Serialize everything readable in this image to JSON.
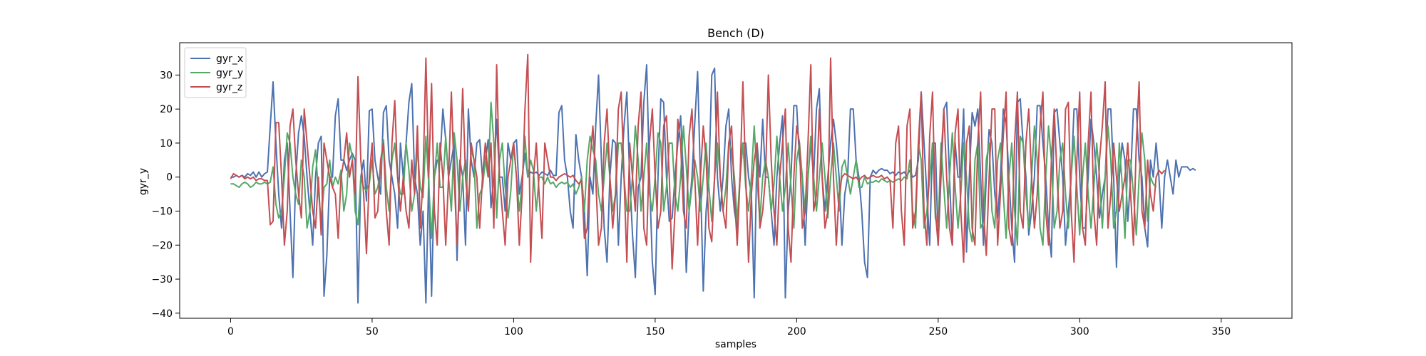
{
  "chart_data": {
    "type": "line",
    "title": "Bench (D)",
    "xlabel": "samples",
    "ylabel": "gyr_y",
    "xlim": [
      -18,
      375
    ],
    "ylim": [
      -41.5,
      39.5
    ],
    "xticks": [
      0,
      50,
      100,
      150,
      200,
      250,
      300,
      350
    ],
    "yticks": [
      -40,
      -30,
      -20,
      -10,
      0,
      10,
      20,
      30
    ],
    "grid": false,
    "legend_position": "top-left",
    "series": [
      {
        "name": "gyr_x",
        "color": "#4c72b0",
        "values": [
          0,
          0,
          0.5,
          0,
          0.5,
          0,
          1,
          0.5,
          1.5,
          0,
          1.5,
          0,
          1,
          1.5,
          15,
          28,
          10,
          -5,
          -15,
          5,
          10,
          -10,
          -29.5,
          0,
          13,
          18,
          12,
          0,
          -10,
          -20,
          0,
          10,
          12,
          -35,
          -23,
          0,
          0,
          18,
          23,
          5,
          5,
          2,
          5,
          7,
          5,
          -37,
          0,
          5,
          -7,
          19.5,
          20,
          5,
          0,
          -5,
          19,
          21,
          5,
          0,
          -5,
          -15,
          10,
          0,
          10,
          22,
          27.5,
          0,
          -5,
          -20,
          -10,
          -37,
          0,
          -35,
          0,
          5,
          5,
          20,
          11,
          0,
          5,
          10,
          -24.5,
          5,
          0,
          -20,
          20,
          5,
          0,
          10,
          11,
          0,
          5,
          11,
          -9,
          0,
          17,
          0,
          0,
          -10,
          10,
          5,
          10,
          11,
          -5,
          0,
          7,
          0,
          1.5,
          1,
          1.5,
          0.5,
          1.5,
          1,
          0.5,
          2,
          0.5,
          0.5,
          19,
          21,
          5,
          0,
          -10,
          -15,
          12.5,
          5,
          0,
          -10,
          -29,
          0,
          -5,
          15,
          30,
          5,
          -15,
          -25,
          0,
          11,
          10,
          -20,
          0,
          15,
          25,
          0,
          -17,
          -29.5,
          -3,
          0,
          22,
          33,
          0,
          -25,
          -34.5,
          0,
          23,
          22,
          0,
          -13,
          -12,
          0,
          10,
          18,
          0,
          -28,
          -10,
          0,
          16,
          31,
          0,
          -33.5,
          -10,
          0,
          30,
          32,
          0,
          -10,
          0,
          15,
          20,
          0,
          -10,
          -15,
          0,
          10,
          10,
          0,
          -5,
          -35.5,
          10,
          0,
          17,
          0,
          0,
          -10,
          -20,
          0,
          10,
          18,
          -35.5,
          -10,
          0,
          21,
          21,
          5,
          0,
          -20,
          0,
          10,
          0,
          20,
          26,
          0,
          -10,
          0,
          10,
          17,
          10,
          0,
          -20,
          -5,
          0,
          20,
          20,
          5,
          0,
          -10,
          -25,
          -29.5,
          0,
          2,
          1,
          2,
          2.5,
          2,
          2,
          1,
          1.5,
          0.5,
          1.5,
          1,
          1.5,
          0.5,
          2,
          0,
          0.5,
          5,
          25,
          10,
          -5,
          -20,
          10,
          10,
          -20,
          0,
          20,
          22,
          0,
          -20,
          10,
          0,
          0,
          20,
          -22,
          0,
          19,
          15,
          20,
          0,
          -20,
          0,
          14,
          10,
          -5,
          -12,
          0,
          20,
          16,
          0,
          -15,
          -25,
          22,
          23,
          10,
          0,
          -17,
          -10,
          0,
          21,
          21,
          10,
          0,
          -15,
          -23.5,
          19,
          20,
          10,
          0,
          -20,
          -10,
          0,
          20,
          20,
          0,
          -15,
          -15,
          0,
          17,
          10,
          0,
          -12,
          -5,
          0,
          20,
          20,
          0,
          -26.5,
          0,
          10,
          5,
          -13,
          0,
          20,
          20,
          5,
          0,
          -15,
          -20.5,
          5,
          0,
          10,
          0,
          -15,
          0,
          5,
          0,
          -5,
          5,
          0,
          3,
          3,
          3,
          2,
          2.5,
          2
        ]
      },
      {
        "name": "gyr_y",
        "color": "#55a868",
        "values": [
          -2,
          -2,
          -2.5,
          -3,
          -2,
          -1.5,
          -2,
          -3,
          -2.5,
          -1.5,
          -2,
          -2,
          -1.5,
          -2,
          -1.5,
          3,
          -8,
          -12,
          -10,
          0,
          13,
          10,
          0,
          -5,
          -8,
          5,
          0,
          -15,
          -10,
          3,
          8,
          -4,
          -13,
          -3,
          -2,
          5,
          -3,
          0,
          -2,
          2,
          -10,
          -5,
          10,
          6,
          -10,
          -14,
          0,
          -3,
          -4,
          -2,
          5,
          -5,
          -3,
          2,
          11,
          -3,
          -10,
          5,
          10,
          0,
          -5,
          -5,
          10,
          2,
          -10,
          -5,
          9,
          -3,
          -6,
          12,
          -2,
          -18,
          0,
          10,
          -3,
          -3,
          12,
          0,
          -10,
          13,
          5,
          -10,
          0,
          5,
          -10,
          8,
          5,
          -15,
          -5,
          -3,
          5,
          0,
          22,
          10,
          -12,
          5,
          10,
          -3,
          -12,
          -4,
          10,
          0,
          -10,
          -2,
          12,
          0,
          5,
          2,
          -10,
          0,
          0,
          -2,
          0,
          -2,
          -1.5,
          -3,
          -2,
          -1.5,
          -2,
          -1.5,
          -3,
          -2,
          -5,
          -3,
          0,
          -10,
          5,
          12,
          8,
          5,
          -5,
          -10,
          0,
          10,
          0,
          -10,
          -5,
          10,
          10,
          0,
          -10,
          -10,
          0,
          15,
          5,
          -10,
          0,
          10,
          -5,
          -10,
          0,
          13,
          10,
          -10,
          -3,
          10,
          10,
          -5,
          -10,
          0,
          15,
          3,
          -10,
          -3,
          5,
          0,
          -10,
          0,
          10,
          -3,
          -13,
          0,
          10,
          0,
          -10,
          -3,
          10,
          8,
          0,
          -13,
          0,
          10,
          -3,
          -10,
          0,
          15,
          0,
          -13,
          0,
          5,
          0,
          -10,
          -2,
          12,
          0,
          -10,
          -3,
          10,
          -3,
          -15,
          5,
          10,
          0,
          -10,
          0,
          12,
          0,
          -10,
          0,
          10,
          0,
          -12,
          0,
          10,
          0,
          -10,
          3,
          5,
          0,
          -5,
          0,
          5,
          -3,
          -3,
          0,
          -2,
          -1.5,
          -1.5,
          -1,
          -1.5,
          -0.5,
          -1,
          -1.5,
          -1,
          -1.5,
          -1,
          -0.5,
          -1,
          0,
          -0.5,
          5,
          -10,
          -15,
          10,
          5,
          -15,
          -10,
          0,
          10,
          -12,
          -15,
          10,
          -3,
          -15,
          0,
          13,
          -3,
          -15,
          -5,
          10,
          0,
          -15,
          -19,
          5,
          10,
          -15,
          -13,
          5,
          10,
          -10,
          -15,
          5,
          10,
          -5,
          -18,
          0,
          10,
          -10,
          -20,
          12,
          10,
          -5,
          -15,
          0,
          15,
          5,
          -15,
          -20,
          0,
          15,
          5,
          -15,
          -10,
          5,
          10,
          -5,
          -15,
          0,
          12,
          -3,
          -17,
          0,
          10,
          -5,
          -15,
          -3,
          10,
          0,
          -15,
          0,
          15,
          5,
          -15,
          -10,
          10,
          -2,
          -18,
          5,
          5,
          -5,
          -17,
          0,
          13,
          5,
          -13,
          0,
          -2,
          -3
        ]
      },
      {
        "name": "gyr_z",
        "color": "#c44e52",
        "values": [
          -0.5,
          1,
          0.5,
          0,
          0.5,
          -0.5,
          0,
          -0.5,
          0,
          -1,
          -0.5,
          -0.5,
          -1,
          -1,
          -14,
          -13,
          16,
          16,
          0,
          -20,
          -10,
          15,
          20,
          5,
          -5,
          -12,
          20,
          10,
          0,
          -10,
          -15,
          0,
          -17,
          10,
          5,
          0,
          -3,
          -5,
          -18,
          0,
          5,
          13,
          0,
          5,
          -5,
          29.5,
          5,
          -5,
          -22.5,
          0,
          10,
          -12,
          -10,
          5,
          10,
          -10,
          -20,
          10,
          22.5,
          0,
          -10,
          0,
          -10,
          -15,
          5,
          -5,
          15,
          -15,
          0,
          35,
          0,
          27.5,
          -10,
          -20,
          10,
          0,
          -20,
          0,
          25,
          0,
          -20,
          0,
          26,
          0,
          -10,
          10,
          5,
          0,
          -15,
          0,
          10,
          0,
          10,
          -15,
          33,
          0,
          -10,
          -20,
          0,
          5,
          10,
          0,
          -20,
          -5,
          20,
          36,
          -25,
          0,
          10,
          -5,
          -18,
          10,
          5,
          0,
          0,
          -1,
          0,
          0.5,
          1,
          0.5,
          0,
          0.5,
          -1,
          -2,
          -1,
          -18,
          -15,
          5,
          15,
          0,
          -20,
          -15,
          10,
          20,
          0,
          -15,
          -5,
          20,
          25,
          0,
          -25,
          10,
          0,
          -10,
          15,
          25,
          -15,
          -20,
          10,
          20,
          0,
          -15,
          -10,
          15,
          18,
          0,
          -27,
          -10,
          17,
          10,
          -10,
          -15,
          12,
          20,
          0,
          -20,
          0,
          15,
          5,
          -15,
          -19,
          0,
          25,
          0,
          -10,
          -15,
          10,
          15,
          -5,
          -20,
          0,
          28,
          0,
          -25,
          -5,
          5,
          10,
          -15,
          -10,
          0,
          30,
          5,
          -10,
          -20,
          0,
          10,
          20,
          -15,
          -25,
          0,
          15,
          10,
          -15,
          -10,
          10,
          33,
          -10,
          -5,
          20,
          0,
          -15,
          -10,
          35,
          0,
          -20,
          -5,
          0,
          1,
          0.5,
          0,
          -0.5,
          0,
          -1,
          0,
          0.5,
          -0.5,
          0,
          0.5,
          0,
          0,
          0.5,
          -0.5,
          0,
          -1,
          -15,
          10,
          15,
          -10,
          -20,
          15,
          20,
          -15,
          -10,
          10,
          25,
          -10,
          -20,
          12,
          25,
          -10,
          -20,
          5,
          20,
          0,
          -15,
          -20,
          13,
          20,
          -10,
          -25,
          10,
          15,
          -15,
          -20,
          10,
          25,
          -10,
          -23,
          0,
          20,
          20,
          -20,
          -5,
          12,
          25,
          -15,
          -20,
          10,
          25,
          -10,
          -15,
          10,
          20,
          0,
          -15,
          -5,
          15,
          25,
          -10,
          -20,
          5,
          20,
          0,
          -15,
          -10,
          20,
          22,
          -10,
          -25,
          5,
          25,
          -15,
          -20,
          10,
          25,
          -10,
          -20,
          5,
          15,
          28,
          -15,
          -5,
          10,
          0,
          -10,
          -5,
          0,
          10,
          -5,
          -20,
          10,
          28,
          -10,
          -15,
          5,
          -5,
          -10,
          0,
          2,
          1,
          2
        ]
      }
    ]
  }
}
